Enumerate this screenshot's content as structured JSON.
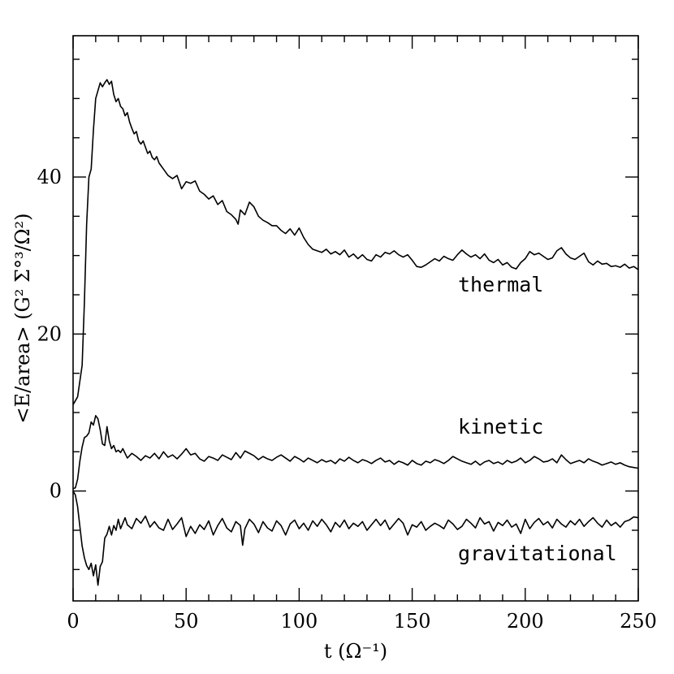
{
  "chart_data": {
    "type": "line",
    "title": "",
    "xlabel": "t  (Ω⁻¹)",
    "ylabel": "<E/area> (G² Σ°³/Ω²)",
    "xlim": [
      0,
      250
    ],
    "ylim": [
      -14,
      58
    ],
    "x_ticks": [
      "0",
      "50",
      "100",
      "150",
      "200",
      "250"
    ],
    "y_ticks": [
      "0",
      "20",
      "40"
    ],
    "grid": false,
    "series": [
      {
        "name": "thermal",
        "x": [
          0,
          2,
          4,
          5,
          6,
          7,
          8,
          9,
          10,
          11,
          12,
          13,
          14,
          15,
          16,
          17,
          18,
          19,
          20,
          21,
          22,
          23,
          24,
          25,
          26,
          27,
          28,
          29,
          30,
          31,
          32,
          33,
          34,
          35,
          36,
          37,
          38,
          39,
          40,
          42,
          44,
          46,
          48,
          50,
          52,
          54,
          56,
          58,
          60,
          62,
          64,
          66,
          68,
          70,
          72,
          73,
          74,
          76,
          78,
          80,
          82,
          84,
          86,
          88,
          90,
          92,
          94,
          96,
          98,
          100,
          102,
          104,
          106,
          108,
          110,
          112,
          114,
          116,
          118,
          120,
          122,
          124,
          126,
          128,
          130,
          132,
          134,
          136,
          138,
          140,
          142,
          144,
          146,
          148,
          150,
          152,
          154,
          156,
          158,
          160,
          162,
          164,
          166,
          168,
          170,
          172,
          174,
          176,
          178,
          180,
          182,
          184,
          186,
          188,
          190,
          192,
          194,
          196,
          198,
          200,
          202,
          204,
          206,
          208,
          210,
          212,
          214,
          216,
          218,
          220,
          222,
          224,
          226,
          228,
          230,
          232,
          234,
          236,
          238,
          240,
          242,
          244,
          246,
          248,
          250
        ],
        "values": [
          11,
          12,
          16,
          24,
          34,
          40,
          41,
          46,
          50,
          51,
          52,
          51.5,
          52,
          52.4,
          51.8,
          52.2,
          50.5,
          49.6,
          50,
          49,
          48.7,
          47.8,
          48.2,
          47,
          46.2,
          45.5,
          45.8,
          44.6,
          44.2,
          44.6,
          43.8,
          43,
          43.3,
          42.5,
          42.2,
          42.6,
          41.8,
          41.4,
          41,
          40.2,
          39.8,
          40.2,
          38.5,
          39.4,
          39.2,
          39.5,
          38.2,
          37.8,
          37.2,
          37.6,
          36.5,
          37,
          35.6,
          35.2,
          34.6,
          34,
          35.8,
          35.2,
          36.8,
          36.2,
          35,
          34.5,
          34.2,
          33.8,
          33.8,
          33.2,
          32.8,
          33.4,
          32.6,
          33.5,
          32.3,
          31.4,
          30.8,
          30.6,
          30.4,
          30.8,
          30.2,
          30.5,
          30.1,
          30.7,
          29.8,
          30.2,
          29.6,
          30.1,
          29.5,
          29.3,
          30.1,
          29.8,
          30.4,
          30.2,
          30.6,
          30.1,
          29.8,
          30.1,
          29.4,
          28.6,
          28.5,
          28.8,
          29.2,
          29.6,
          29.3,
          29.9,
          29.6,
          29.4,
          30.1,
          30.7,
          30.2,
          29.8,
          30.1,
          29.6,
          30.2,
          29.4,
          29.1,
          29.5,
          28.8,
          29.1,
          28.5,
          28.3,
          29.1,
          29.6,
          30.5,
          30.1,
          30.3,
          29.9,
          29.5,
          29.7,
          30.6,
          31,
          30.2,
          29.7,
          29.5,
          29.9,
          30.3,
          29.2,
          28.8,
          29.3,
          28.9,
          29,
          28.6,
          28.7,
          28.5,
          28.9,
          28.4,
          28.6,
          28.2
        ]
      },
      {
        "name": "kinetic",
        "x": [
          0,
          1,
          2,
          3,
          4,
          5,
          6,
          7,
          8,
          9,
          10,
          11,
          12,
          13,
          14,
          15,
          16,
          17,
          18,
          19,
          20,
          21,
          22,
          24,
          26,
          28,
          30,
          32,
          34,
          36,
          38,
          40,
          42,
          44,
          46,
          48,
          50,
          52,
          54,
          56,
          58,
          60,
          62,
          64,
          66,
          68,
          70,
          72,
          74,
          76,
          78,
          80,
          82,
          84,
          86,
          88,
          90,
          92,
          94,
          96,
          98,
          100,
          102,
          104,
          106,
          108,
          110,
          112,
          114,
          116,
          118,
          120,
          122,
          124,
          126,
          128,
          130,
          132,
          134,
          136,
          138,
          140,
          142,
          144,
          146,
          148,
          150,
          152,
          154,
          156,
          158,
          160,
          162,
          164,
          166,
          168,
          170,
          172,
          174,
          176,
          178,
          180,
          182,
          184,
          186,
          188,
          190,
          192,
          194,
          196,
          198,
          200,
          202,
          204,
          206,
          208,
          210,
          212,
          214,
          216,
          218,
          220,
          222,
          224,
          226,
          228,
          230,
          232,
          234,
          236,
          238,
          240,
          242,
          244,
          246,
          248,
          250
        ],
        "values": [
          0.3,
          0.4,
          1.5,
          3.8,
          5.6,
          6.8,
          7.0,
          7.4,
          8.8,
          8.4,
          9.6,
          9.2,
          7.8,
          6.0,
          5.8,
          8.2,
          6.4,
          5.4,
          5.8,
          5.0,
          5.2,
          4.9,
          5.4,
          4.2,
          4.8,
          4.4,
          3.9,
          4.5,
          4.2,
          4.8,
          4.1,
          5.0,
          4.3,
          4.6,
          4.1,
          4.7,
          5.4,
          4.6,
          4.8,
          4.1,
          3.8,
          4.4,
          4.2,
          3.9,
          4.6,
          4.3,
          4.0,
          4.9,
          4.2,
          5.1,
          4.8,
          4.5,
          4.0,
          4.4,
          4.1,
          3.9,
          4.3,
          4.6,
          4.2,
          3.8,
          4.4,
          4.1,
          3.7,
          4.2,
          3.9,
          3.6,
          4.0,
          3.7,
          3.9,
          3.5,
          4.1,
          3.8,
          4.3,
          3.9,
          3.6,
          4.0,
          3.8,
          3.5,
          3.9,
          4.2,
          3.7,
          3.9,
          3.4,
          3.8,
          3.6,
          3.3,
          3.9,
          3.5,
          3.3,
          3.8,
          3.6,
          4.0,
          3.8,
          3.5,
          3.9,
          4.4,
          4.1,
          3.8,
          3.6,
          3.4,
          3.8,
          3.3,
          3.7,
          3.9,
          3.5,
          3.7,
          3.4,
          3.9,
          3.6,
          3.8,
          4.2,
          3.6,
          3.9,
          4.4,
          4.1,
          3.7,
          3.8,
          4.1,
          3.6,
          4.6,
          4.0,
          3.5,
          3.7,
          3.9,
          3.6,
          4.1,
          3.8,
          3.6,
          3.3,
          3.5,
          3.7,
          3.4,
          3.6,
          3.3,
          3.1,
          3.0,
          2.9
        ]
      },
      {
        "name": "gravitational",
        "x": [
          0,
          1,
          2,
          3,
          4,
          5,
          6,
          7,
          8,
          9,
          10,
          11,
          12,
          13,
          14,
          15,
          16,
          17,
          18,
          19,
          20,
          21,
          22,
          23,
          24,
          26,
          28,
          30,
          32,
          34,
          36,
          38,
          40,
          42,
          44,
          46,
          48,
          50,
          52,
          54,
          56,
          58,
          60,
          62,
          64,
          66,
          68,
          70,
          72,
          74,
          75,
          76,
          78,
          80,
          82,
          84,
          86,
          88,
          90,
          92,
          94,
          96,
          98,
          100,
          102,
          104,
          106,
          108,
          110,
          112,
          114,
          116,
          118,
          120,
          122,
          124,
          126,
          128,
          130,
          132,
          134,
          136,
          138,
          140,
          142,
          144,
          146,
          148,
          150,
          152,
          154,
          156,
          158,
          160,
          162,
          164,
          166,
          168,
          170,
          172,
          174,
          176,
          178,
          180,
          182,
          184,
          186,
          188,
          190,
          192,
          194,
          196,
          198,
          200,
          202,
          204,
          206,
          208,
          210,
          212,
          214,
          216,
          218,
          220,
          222,
          224,
          226,
          228,
          230,
          232,
          234,
          236,
          238,
          240,
          242,
          244,
          246,
          248,
          250
        ],
        "values": [
          0,
          -0.5,
          -2,
          -4.5,
          -7,
          -8.5,
          -9.5,
          -10,
          -9.2,
          -10.8,
          -9.4,
          -12,
          -9.6,
          -9.0,
          -6.0,
          -5.5,
          -4.5,
          -5.6,
          -4.4,
          -5.0,
          -3.6,
          -4.8,
          -4.1,
          -3.4,
          -4.3,
          -4.8,
          -3.5,
          -4.1,
          -3.2,
          -4.6,
          -3.9,
          -4.7,
          -5.0,
          -3.6,
          -4.9,
          -4.2,
          -3.4,
          -5.8,
          -4.5,
          -5.4,
          -4.3,
          -4.9,
          -3.8,
          -5.6,
          -4.4,
          -3.5,
          -4.7,
          -5.2,
          -3.9,
          -4.4,
          -6.9,
          -4.8,
          -3.6,
          -4.2,
          -5.3,
          -3.9,
          -4.7,
          -5.1,
          -3.8,
          -4.4,
          -5.6,
          -4.2,
          -3.7,
          -4.8,
          -4.1,
          -5.0,
          -3.8,
          -4.5,
          -3.6,
          -4.3,
          -5.2,
          -4.0,
          -4.6,
          -3.7,
          -4.8,
          -4.1,
          -4.5,
          -3.9,
          -5.0,
          -4.3,
          -3.6,
          -4.4,
          -3.7,
          -4.9,
          -4.2,
          -3.5,
          -4.1,
          -5.6,
          -4.3,
          -4.6,
          -3.9,
          -5.0,
          -4.5,
          -4.1,
          -4.4,
          -4.8,
          -3.7,
          -4.2,
          -4.9,
          -4.5,
          -3.6,
          -4.1,
          -4.7,
          -3.4,
          -4.2,
          -3.9,
          -5.1,
          -4.0,
          -4.4,
          -3.7,
          -4.6,
          -4.2,
          -5.4,
          -3.6,
          -4.8,
          -4.0,
          -3.5,
          -4.3,
          -3.9,
          -4.7,
          -3.6,
          -4.2,
          -4.6,
          -3.8,
          -4.3,
          -3.6,
          -4.5,
          -3.9,
          -3.4,
          -4.1,
          -4.6,
          -3.7,
          -4.4,
          -4.0,
          -4.6,
          -3.9,
          -3.7,
          -3.3,
          -3.4
        ]
      }
    ],
    "annotations": [
      "thermal",
      "kinetic",
      "gravitational"
    ]
  }
}
